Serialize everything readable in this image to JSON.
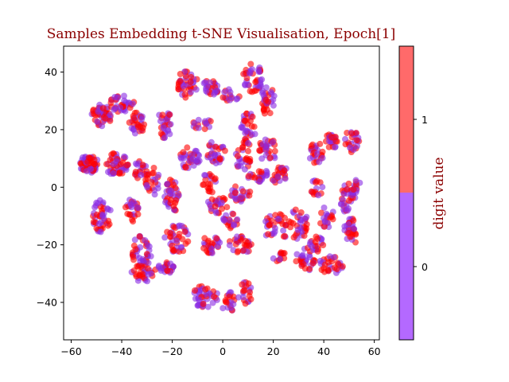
{
  "chart_data": {
    "type": "scatter",
    "title": "Samples Embedding t-SNE Visualisation, Epoch[1]",
    "title_color": "#8b0000",
    "xlabel": "",
    "ylabel": "",
    "xlim": [
      -63,
      62
    ],
    "ylim": [
      -53,
      49
    ],
    "xticks": [
      -60,
      -40,
      -20,
      0,
      20,
      40,
      60
    ],
    "yticks": [
      -40,
      -20,
      0,
      20,
      40
    ],
    "xtick_labels": [
      "−60",
      "−40",
      "−20",
      "0",
      "20",
      "40",
      "60"
    ],
    "ytick_labels": [
      "−40",
      "−20",
      "0",
      "20",
      "40"
    ],
    "grid": false,
    "colorbar": {
      "label": "digit value",
      "label_color": "#8b0000",
      "ticks": [
        "0",
        "1"
      ],
      "colors": [
        "#b469ff",
        "#ff6a6a"
      ]
    },
    "series": [
      {
        "name": "0",
        "color": "#8a2be2"
      },
      {
        "name": "1",
        "color": "#ff0000"
      }
    ],
    "point_opacity": 0.6,
    "clusters": [
      {
        "cx": -53,
        "cy": 8,
        "rx": 4,
        "ry": 3,
        "n": 60
      },
      {
        "cx": -42,
        "cy": 8,
        "rx": 5,
        "ry": 4,
        "n": 50
      },
      {
        "cx": -48,
        "cy": 25,
        "rx": 4,
        "ry": 4,
        "n": 45
      },
      {
        "cx": -40,
        "cy": 29,
        "rx": 5,
        "ry": 3,
        "n": 35
      },
      {
        "cx": -34,
        "cy": 22,
        "rx": 3,
        "ry": 4,
        "n": 30
      },
      {
        "cx": -48,
        "cy": -10,
        "rx": 4,
        "ry": 6,
        "n": 45
      },
      {
        "cx": -36,
        "cy": -8,
        "rx": 3,
        "ry": 4,
        "n": 25
      },
      {
        "cx": -33,
        "cy": 6,
        "rx": 3,
        "ry": 3,
        "n": 20
      },
      {
        "cx": -28,
        "cy": 2,
        "rx": 3,
        "ry": 5,
        "n": 25
      },
      {
        "cx": -32,
        "cy": -22,
        "rx": 4,
        "ry": 6,
        "n": 40
      },
      {
        "cx": -32,
        "cy": -30,
        "rx": 5,
        "ry": 3,
        "n": 30
      },
      {
        "cx": -23,
        "cy": -28,
        "rx": 4,
        "ry": 2,
        "n": 25
      },
      {
        "cx": -18,
        "cy": -18,
        "rx": 5,
        "ry": 5,
        "n": 40
      },
      {
        "cx": -20,
        "cy": -3,
        "rx": 3,
        "ry": 6,
        "n": 40
      },
      {
        "cx": -23,
        "cy": 22,
        "rx": 3,
        "ry": 5,
        "n": 30
      },
      {
        "cx": -13,
        "cy": 10,
        "rx": 4,
        "ry": 4,
        "n": 35
      },
      {
        "cx": -14,
        "cy": 36,
        "rx": 4,
        "ry": 5,
        "n": 40
      },
      {
        "cx": -5,
        "cy": 35,
        "rx": 4,
        "ry": 3,
        "n": 25
      },
      {
        "cx": -8,
        "cy": 22,
        "rx": 4,
        "ry": 2,
        "n": 15
      },
      {
        "cx": -3,
        "cy": 12,
        "rx": 4,
        "ry": 4,
        "n": 30
      },
      {
        "cx": -5,
        "cy": 2,
        "rx": 3,
        "ry": 4,
        "n": 20
      },
      {
        "cx": -2,
        "cy": -6,
        "rx": 4,
        "ry": 3,
        "n": 25
      },
      {
        "cx": 3,
        "cy": -12,
        "rx": 3,
        "ry": 3,
        "n": 20
      },
      {
        "cx": -5,
        "cy": -20,
        "rx": 4,
        "ry": 3,
        "n": 30
      },
      {
        "cx": 7,
        "cy": -20,
        "rx": 5,
        "ry": 3,
        "n": 30
      },
      {
        "cx": 3,
        "cy": 32,
        "rx": 4,
        "ry": 2,
        "n": 15
      },
      {
        "cx": 12,
        "cy": 38,
        "rx": 4,
        "ry": 5,
        "n": 40
      },
      {
        "cx": 10,
        "cy": 20,
        "rx": 3,
        "ry": 6,
        "n": 35
      },
      {
        "cx": 8,
        "cy": 10,
        "rx": 3,
        "ry": 4,
        "n": 25
      },
      {
        "cx": 18,
        "cy": 30,
        "rx": 3,
        "ry": 5,
        "n": 30
      },
      {
        "cx": 18,
        "cy": 13,
        "rx": 4,
        "ry": 4,
        "n": 30
      },
      {
        "cx": 7,
        "cy": -2,
        "rx": 4,
        "ry": 3,
        "n": 25
      },
      {
        "cx": 14,
        "cy": 4,
        "rx": 4,
        "ry": 3,
        "n": 25
      },
      {
        "cx": 23,
        "cy": 4,
        "rx": 4,
        "ry": 3,
        "n": 25
      },
      {
        "cx": 21,
        "cy": -14,
        "rx": 5,
        "ry": 5,
        "n": 35
      },
      {
        "cx": 30,
        "cy": -13,
        "rx": 4,
        "ry": 6,
        "n": 35
      },
      {
        "cx": 22,
        "cy": -24,
        "rx": 3,
        "ry": 2,
        "n": 12
      },
      {
        "cx": 33,
        "cy": -25,
        "rx": 4,
        "ry": 4,
        "n": 30
      },
      {
        "cx": 37,
        "cy": -20,
        "rx": 3,
        "ry": 3,
        "n": 20
      },
      {
        "cx": 43,
        "cy": -27,
        "rx": 5,
        "ry": 3,
        "n": 30
      },
      {
        "cx": 51,
        "cy": -15,
        "rx": 3,
        "ry": 5,
        "n": 30
      },
      {
        "cx": 49,
        "cy": -4,
        "rx": 3,
        "ry": 5,
        "n": 25
      },
      {
        "cx": 52,
        "cy": -1,
        "rx": 3,
        "ry": 4,
        "n": 20
      },
      {
        "cx": 41,
        "cy": -10,
        "rx": 3,
        "ry": 4,
        "n": 20
      },
      {
        "cx": 37,
        "cy": 0,
        "rx": 3,
        "ry": 3,
        "n": 15
      },
      {
        "cx": 37,
        "cy": 12,
        "rx": 3,
        "ry": 4,
        "n": 25
      },
      {
        "cx": 43,
        "cy": 16,
        "rx": 3,
        "ry": 3,
        "n": 25
      },
      {
        "cx": 51,
        "cy": 16,
        "rx": 3,
        "ry": 4,
        "n": 25
      },
      {
        "cx": -7,
        "cy": -38,
        "rx": 5,
        "ry": 4,
        "n": 40
      },
      {
        "cx": 2,
        "cy": -40,
        "rx": 3,
        "ry": 4,
        "n": 20
      },
      {
        "cx": 9,
        "cy": -37,
        "rx": 3,
        "ry": 4,
        "n": 20
      }
    ]
  }
}
